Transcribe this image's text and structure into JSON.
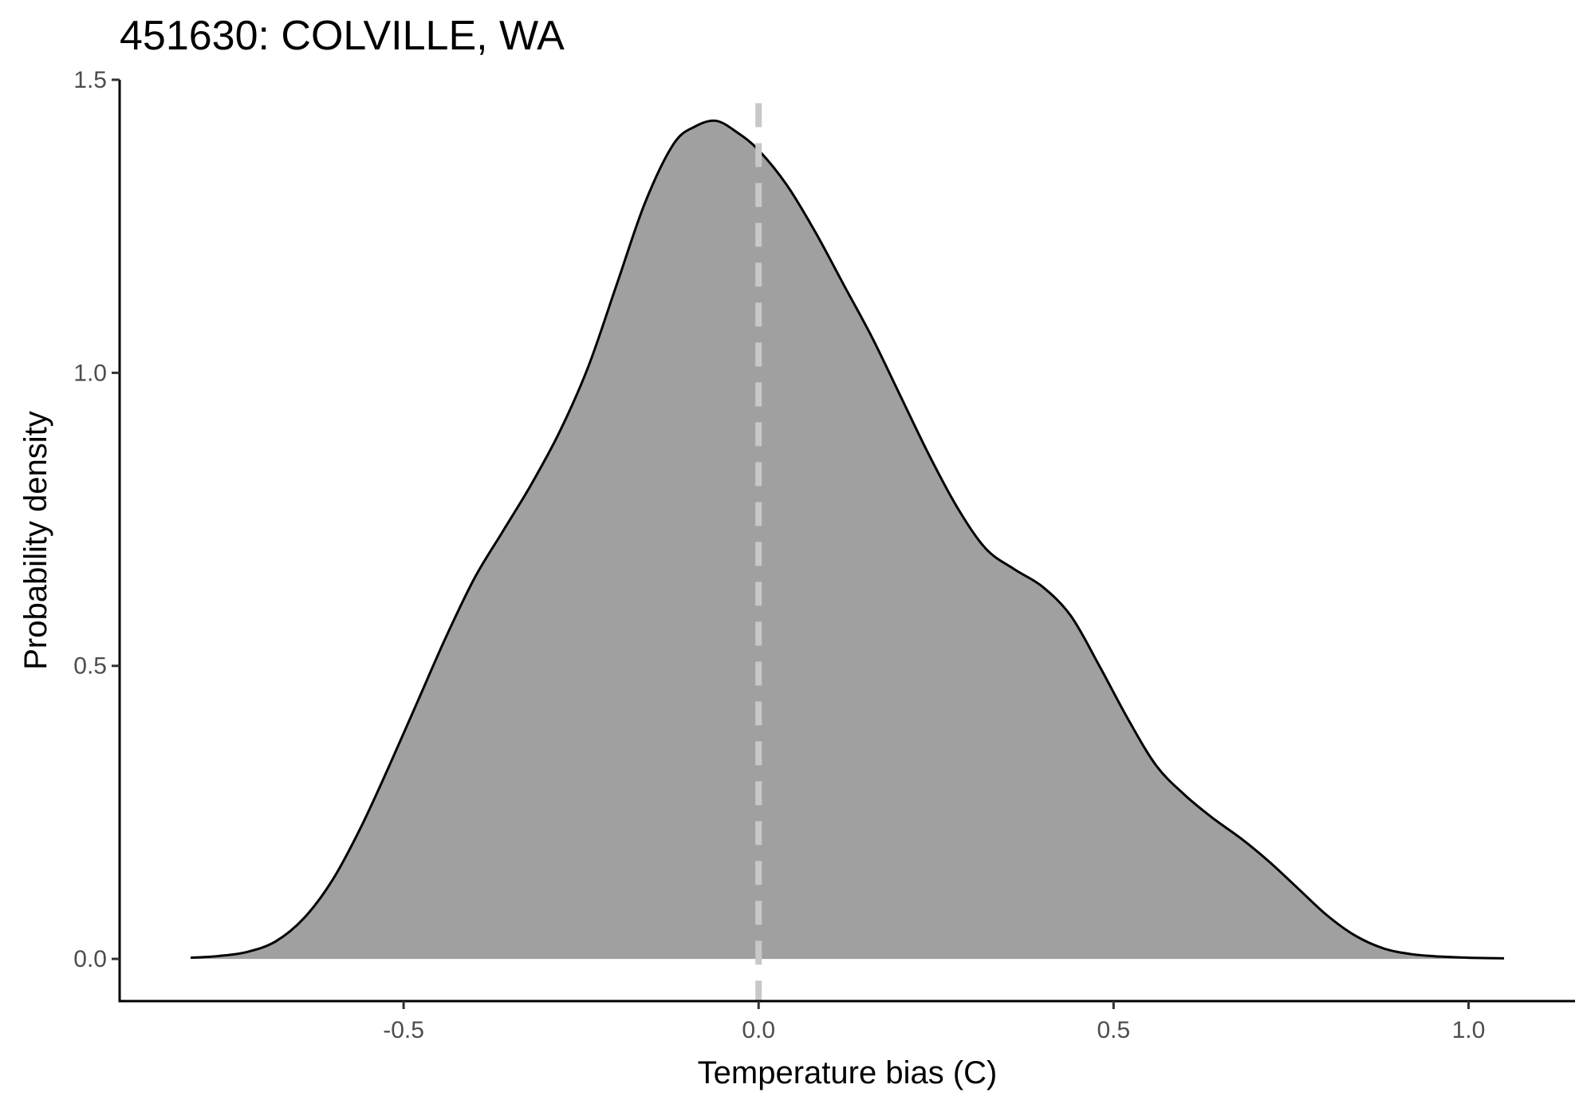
{
  "chart_data": {
    "type": "area",
    "title": "451630: COLVILLE, WA",
    "xlabel": "Temperature bias (C)",
    "ylabel": "Probability density",
    "xlim": [
      -0.9,
      1.15
    ],
    "ylim": [
      -0.072,
      1.5
    ],
    "x_ticks": [
      -0.5,
      0.0,
      0.5,
      1.0
    ],
    "x_tick_labels": [
      "-0.5",
      "0.0",
      "0.5",
      "1.0"
    ],
    "y_ticks": [
      0.0,
      0.5,
      1.0,
      1.5
    ],
    "y_tick_labels": [
      "0.0",
      "0.5",
      "1.0",
      "1.5"
    ],
    "grid": false,
    "reference_line": {
      "x": 0.0,
      "style": "dashed",
      "color": "#c8c8c8"
    },
    "fill_color": "#a0a0a0",
    "line_color": "#000000",
    "x": [
      -0.8,
      -0.76,
      -0.72,
      -0.68,
      -0.64,
      -0.6,
      -0.56,
      -0.52,
      -0.48,
      -0.44,
      -0.4,
      -0.36,
      -0.32,
      -0.28,
      -0.24,
      -0.2,
      -0.16,
      -0.12,
      -0.09,
      -0.06,
      -0.03,
      0.0,
      0.04,
      0.08,
      0.12,
      0.16,
      0.2,
      0.24,
      0.28,
      0.32,
      0.36,
      0.4,
      0.44,
      0.48,
      0.52,
      0.56,
      0.6,
      0.64,
      0.68,
      0.72,
      0.76,
      0.8,
      0.84,
      0.88,
      0.92,
      0.96,
      1.0,
      1.05
    ],
    "y": [
      0.002,
      0.005,
      0.012,
      0.03,
      0.07,
      0.135,
      0.225,
      0.33,
      0.44,
      0.55,
      0.65,
      0.73,
      0.81,
      0.9,
      1.01,
      1.15,
      1.29,
      1.39,
      1.42,
      1.43,
      1.41,
      1.38,
      1.32,
      1.24,
      1.15,
      1.06,
      0.96,
      0.86,
      0.77,
      0.7,
      0.665,
      0.635,
      0.585,
      0.5,
      0.41,
      0.33,
      0.28,
      0.24,
      0.205,
      0.165,
      0.12,
      0.075,
      0.04,
      0.018,
      0.008,
      0.004,
      0.002,
      0.001
    ]
  }
}
